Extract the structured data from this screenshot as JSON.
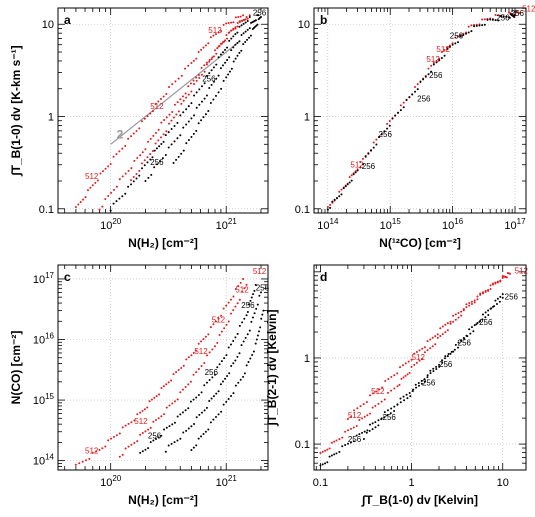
{
  "figure": {
    "panels_count": 4
  },
  "chart_data": [
    {
      "panel_letter": "a",
      "type": "scatter",
      "xlabel": "N(H₂) [cm⁻²]",
      "ylabel": "∫T_B(1-0) dv [K-km s⁻¹]",
      "xscale": "log",
      "yscale": "log",
      "xlim": [
        3.5e+19,
        2.3e+21
      ],
      "ylim": [
        0.09,
        15
      ],
      "xticks": [
        {
          "v": 1e+20,
          "label": "10^20"
        },
        {
          "v": 1e+21,
          "label": "10^21"
        }
      ],
      "yticks": [
        {
          "v": 0.1,
          "label": "0.1"
        },
        {
          "v": 1,
          "label": "1"
        },
        {
          "v": 10,
          "label": "10"
        }
      ],
      "grid": true,
      "reference_line": {
        "label": "2",
        "x": [
          1e+20,
          1.3e+21
        ],
        "y": [
          0.5,
          6.5
        ],
        "color": "#999999"
      },
      "series": [
        {
          "color": "#e41a1c",
          "x": [
            5e+19,
            7e+19,
            1e+20,
            1.5e+20,
            2.2e+20,
            3.2e+20,
            5e+20,
            7e+20,
            1e+21,
            1.4e+21
          ],
          "y": [
            0.1,
            0.18,
            0.32,
            0.6,
            1.1,
            2.0,
            3.8,
            6.5,
            10,
            12.5
          ]
        },
        {
          "color": "#e41a1c",
          "x": [
            8e+19,
            1.2e+20,
            1.8e+20,
            2.6e+20,
            3.8e+20,
            5.5e+20,
            8e+20,
            1.1e+21,
            1.5e+21
          ],
          "y": [
            0.1,
            0.2,
            0.38,
            0.75,
            1.4,
            2.7,
            5.0,
            8.5,
            12
          ]
        },
        {
          "color": "#e41a1c",
          "x": [
            1.5e+20,
            2.2e+20,
            3.2e+20,
            4.5e+20,
            6.5e+20,
            9e+20,
            1.2e+21,
            1.6e+21
          ],
          "y": [
            0.2,
            0.4,
            0.8,
            1.6,
            3.2,
            6.0,
            9.5,
            12.5
          ]
        },
        {
          "color": "#000000",
          "x": [
            1e+20,
            1.5e+20,
            2.2e+20,
            3e+20,
            4.5e+20,
            6.5e+20,
            9e+20,
            1.2e+21,
            1.6e+21
          ],
          "y": [
            0.1,
            0.18,
            0.35,
            0.6,
            1.2,
            2.4,
            4.6,
            8.0,
            12
          ]
        },
        {
          "color": "#000000",
          "x": [
            2e+20,
            3e+20,
            4.5e+20,
            6.5e+20,
            9e+20,
            1.2e+21,
            1.6e+21,
            1.9e+21
          ],
          "y": [
            0.2,
            0.4,
            0.8,
            1.6,
            3.2,
            6.0,
            9.5,
            12.5
          ]
        },
        {
          "color": "#000000",
          "x": [
            3.5e+20,
            5e+20,
            7e+20,
            1e+21,
            1.3e+21,
            1.7e+21,
            2e+21
          ],
          "y": [
            0.3,
            0.6,
            1.2,
            2.6,
            5.0,
            8.5,
            12
          ]
        }
      ],
      "annotations": [
        {
          "text": "512",
          "x": 6e+19,
          "y": 0.21,
          "color": "#e41a1c"
        },
        {
          "text": "512",
          "x": 2.2e+20,
          "y": 1.2,
          "color": "#e41a1c"
        },
        {
          "text": "512",
          "x": 7e+20,
          "y": 8.0,
          "color": "#e41a1c"
        },
        {
          "text": "256",
          "x": 2.2e+20,
          "y": 0.3,
          "color": "#000000"
        },
        {
          "text": "256",
          "x": 6.2e+20,
          "y": 2.4,
          "color": "#000000"
        },
        {
          "text": "256",
          "x": 1.7e+21,
          "y": 12.5,
          "color": "#000000"
        }
      ]
    },
    {
      "panel_letter": "b",
      "type": "scatter",
      "xlabel": "N(¹²CO) [cm⁻²]",
      "ylabel": "",
      "xscale": "log",
      "yscale": "log",
      "xlim": [
        60000000000000.0,
        1.5e+17
      ],
      "ylim": [
        0.09,
        15
      ],
      "xticks": [
        {
          "v": 100000000000000.0,
          "label": "10^14"
        },
        {
          "v": 1000000000000000.0,
          "label": "10^15"
        },
        {
          "v": 1e+16,
          "label": "10^16"
        },
        {
          "v": 1e+17,
          "label": "10^17"
        }
      ],
      "yticks": [
        {
          "v": 0.1,
          "label": "0.1"
        },
        {
          "v": 1,
          "label": "1"
        },
        {
          "v": 10,
          "label": "10"
        }
      ],
      "grid": true,
      "series": [
        {
          "color": "#e41a1c",
          "x": [
            100000000000000.0,
            180000000000000.0,
            300000000000000.0,
            600000000000000.0,
            1200000000000000.0,
            2500000000000000.0,
            5000000000000000.0,
            1e+16,
            2e+16,
            4e+16,
            8e+16,
            1.2e+17
          ],
          "y": [
            0.1,
            0.17,
            0.28,
            0.55,
            1.05,
            2.0,
            3.8,
            6.5,
            9.5,
            11.8,
            12.8,
            13.2
          ]
        },
        {
          "color": "#000000",
          "x": [
            100000000000000.0,
            180000000000000.0,
            300000000000000.0,
            600000000000000.0,
            1200000000000000.0,
            2500000000000000.0,
            5000000000000000.0,
            1e+16,
            2e+16,
            4e+16,
            8e+16,
            1e+17
          ],
          "y": [
            0.1,
            0.16,
            0.26,
            0.52,
            1.0,
            1.9,
            3.5,
            6.0,
            8.8,
            11.0,
            12.2,
            12.6
          ]
        }
      ],
      "annotations": [
        {
          "text": "512",
          "x": 230000000000000.0,
          "y": 0.28,
          "color": "#e41a1c"
        },
        {
          "text": "256",
          "x": 350000000000000.0,
          "y": 0.27,
          "color": "#000000"
        },
        {
          "text": "256",
          "x": 650000000000000.0,
          "y": 0.6,
          "color": "#000000"
        },
        {
          "text": "256",
          "x": 2700000000000000.0,
          "y": 1.45,
          "color": "#000000"
        },
        {
          "text": "512",
          "x": 3800000000000000.0,
          "y": 3.9,
          "color": "#e41a1c"
        },
        {
          "text": "256",
          "x": 4200000000000000.0,
          "y": 2.6,
          "color": "#000000"
        },
        {
          "text": "512",
          "x": 5500000000000000.0,
          "y": 5.0,
          "color": "#e41a1c"
        },
        {
          "text": "256",
          "x": 9000000000000000.0,
          "y": 7.0,
          "color": "#000000"
        },
        {
          "text": "256",
          "x": 5e+16,
          "y": 11.0,
          "color": "#000000"
        },
        {
          "text": "256",
          "x": 8.5e+16,
          "y": 12.3,
          "color": "#000000"
        },
        {
          "text": "512",
          "x": 1.3e+17,
          "y": 13.8,
          "color": "#e41a1c"
        }
      ]
    },
    {
      "panel_letter": "c",
      "type": "scatter",
      "xlabel": "N(H₂) [cm⁻²]",
      "ylabel": "N(CO) [cm⁻²]",
      "xscale": "log",
      "yscale": "log",
      "xlim": [
        3.5e+19,
        2.3e+21
      ],
      "ylim": [
        70000000000000.0,
        1.7e+17
      ],
      "xticks": [
        {
          "v": 1e+20,
          "label": "10^20"
        },
        {
          "v": 1e+21,
          "label": "10^21"
        }
      ],
      "yticks": [
        {
          "v": 100000000000000.0,
          "label": "10^14"
        },
        {
          "v": 1000000000000000.0,
          "label": "10^15"
        },
        {
          "v": 1e+16,
          "label": "10^16"
        },
        {
          "v": 1e+17,
          "label": "10^17"
        }
      ],
      "grid": true,
      "series": [
        {
          "color": "#e41a1c",
          "x": [
            5e+19,
            8e+19,
            1.2e+20,
            1.8e+20,
            2.5e+20,
            3.5e+20,
            5e+20,
            7e+20,
            1e+21,
            1.4e+21
          ],
          "y": [
            80000000000000.0,
            150000000000000.0,
            300000000000000.0,
            600000000000000.0,
            1200000000000000.0,
            2500000000000000.0,
            5500000000000000.0,
            1.3e+16,
            3.5e+16,
            1e+17
          ]
        },
        {
          "color": "#e41a1c",
          "x": [
            1.2e+20,
            1.8e+20,
            2.6e+20,
            3.8e+20,
            5.5e+20,
            8e+20,
            1.1e+21,
            1.5e+21
          ],
          "y": [
            120000000000000.0,
            250000000000000.0,
            500000000000000.0,
            1100000000000000.0,
            2800000000000000.0,
            8000000000000000.0,
            2.5e+16,
            8e+16
          ]
        },
        {
          "color": "#000000",
          "x": [
            1.8e+20,
            2.6e+20,
            3.8e+20,
            5.5e+20,
            8e+20,
            1.1e+21,
            1.5e+21,
            1.8e+21
          ],
          "y": [
            130000000000000.0,
            250000000000000.0,
            500000000000000.0,
            1100000000000000.0,
            2800000000000000.0,
            8000000000000000.0,
            2.6e+16,
            8e+16
          ]
        },
        {
          "color": "#000000",
          "x": [
            3e+20,
            4.5e+20,
            6.5e+20,
            9e+20,
            1.2e+21,
            1.6e+21,
            2e+21
          ],
          "y": [
            150000000000000.0,
            300000000000000.0,
            700000000000000.0,
            1700000000000000.0,
            4500000000000000.0,
            1.5e+16,
            6e+16
          ]
        },
        {
          "color": "#000000",
          "x": [
            5e+20,
            7e+20,
            1e+21,
            1.4e+21,
            1.8e+21,
            2.1e+21
          ],
          "y": [
            150000000000000.0,
            350000000000000.0,
            900000000000000.0,
            2500000000000000.0,
            8000000000000000.0,
            3e+16
          ]
        }
      ],
      "annotations": [
        {
          "text": "512",
          "x": 6e+19,
          "y": 130000000000000.0,
          "color": "#e41a1c"
        },
        {
          "text": "512",
          "x": 1.6e+20,
          "y": 400000000000000.0,
          "color": "#e41a1c"
        },
        {
          "text": "256",
          "x": 2.1e+20,
          "y": 230000000000000.0,
          "color": "#000000"
        },
        {
          "text": "512",
          "x": 5.3e+20,
          "y": 5800000000000000.0,
          "color": "#e41a1c"
        },
        {
          "text": "256",
          "x": 6.5e+20,
          "y": 2600000000000000.0,
          "color": "#000000"
        },
        {
          "text": "512",
          "x": 7.5e+20,
          "y": 1.9e+16,
          "color": "#e41a1c"
        },
        {
          "text": "512",
          "x": 1.2e+21,
          "y": 6e+16,
          "color": "#e41a1c"
        },
        {
          "text": "512",
          "x": 1.7e+21,
          "y": 1.2e+17,
          "color": "#e41a1c"
        },
        {
          "text": "256",
          "x": 1.8e+21,
          "y": 6.5e+16,
          "color": "#000000"
        },
        {
          "text": "256",
          "x": 1.35e+21,
          "y": 3.3e+16,
          "color": "#000000"
        }
      ]
    },
    {
      "panel_letter": "d",
      "type": "scatter",
      "xlabel": "∫T_B(1-0) dv [Kelvin]",
      "ylabel": "∫T_B(2-1) dv [Kelvin]",
      "xscale": "log",
      "yscale": "log",
      "xlim": [
        0.085,
        18
      ],
      "ylim": [
        0.05,
        12
      ],
      "xticks": [
        {
          "v": 0.1,
          "label": "0.1"
        },
        {
          "v": 1,
          "label": "1"
        },
        {
          "v": 10,
          "label": "10"
        }
      ],
      "yticks": [
        {
          "v": 0.1,
          "label": "0.1"
        },
        {
          "v": 1,
          "label": "1"
        }
      ],
      "grid": true,
      "series": [
        {
          "color": "#e41a1c",
          "x": [
            0.1,
            0.15,
            0.25,
            0.4,
            0.7,
            1.0,
            1.6,
            2.5,
            4,
            6.5,
            10,
            12
          ],
          "y": [
            0.075,
            0.11,
            0.17,
            0.27,
            0.48,
            0.75,
            1.3,
            2.2,
            3.8,
            6.0,
            8.5,
            9.5
          ]
        },
        {
          "color": "#e41a1c",
          "x": [
            0.2,
            0.35,
            0.6,
            1.0,
            1.6,
            2.5,
            4,
            6.5,
            10
          ],
          "y": [
            0.2,
            0.35,
            0.6,
            1.0,
            1.6,
            2.6,
            4.0,
            6.0,
            8.5
          ]
        },
        {
          "color": "#000000",
          "x": [
            0.1,
            0.15,
            0.25,
            0.4,
            0.7,
            1.2,
            2.0,
            3.5,
            6,
            10
          ],
          "y": [
            0.055,
            0.08,
            0.12,
            0.18,
            0.3,
            0.5,
            0.85,
            1.5,
            2.8,
            5.0
          ]
        },
        {
          "color": "#000000",
          "x": [
            0.3,
            0.5,
            0.9,
            1.5,
            2.5,
            4,
            6.5,
            10
          ],
          "y": [
            0.12,
            0.2,
            0.35,
            0.6,
            1.05,
            1.9,
            3.3,
            5.5
          ]
        }
      ],
      "annotations": [
        {
          "text": "512",
          "x": 0.2,
          "y": 0.2,
          "color": "#e41a1c"
        },
        {
          "text": "256",
          "x": 0.2,
          "y": 0.105,
          "color": "#000000"
        },
        {
          "text": "512",
          "x": 0.36,
          "y": 0.38,
          "color": "#e41a1c"
        },
        {
          "text": "256",
          "x": 0.48,
          "y": 0.19,
          "color": "#000000"
        },
        {
          "text": "512",
          "x": 1.0,
          "y": 0.95,
          "color": "#e41a1c"
        },
        {
          "text": "256",
          "x": 1.3,
          "y": 0.48,
          "color": "#000000"
        },
        {
          "text": "256",
          "x": 2.0,
          "y": 0.78,
          "color": "#000000"
        },
        {
          "text": "256",
          "x": 3.2,
          "y": 1.4,
          "color": "#000000"
        },
        {
          "text": "256",
          "x": 5.5,
          "y": 2.4,
          "color": "#000000"
        },
        {
          "text": "256",
          "x": 10.5,
          "y": 4.8,
          "color": "#000000"
        },
        {
          "text": "512",
          "x": 13.5,
          "y": 9.5,
          "color": "#e41a1c"
        }
      ]
    }
  ]
}
